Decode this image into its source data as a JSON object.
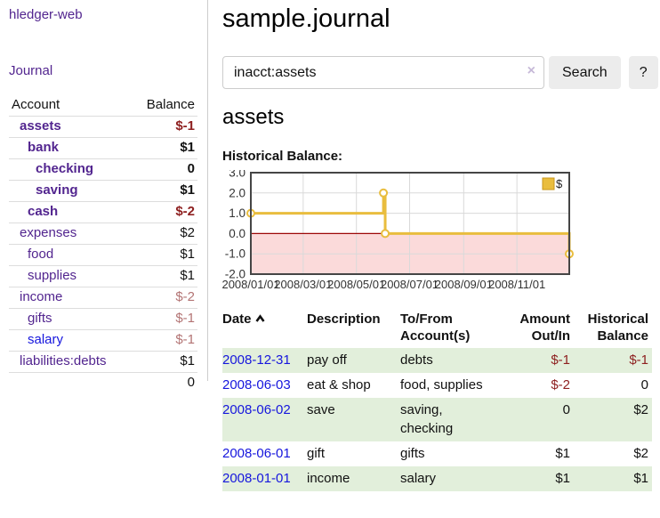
{
  "app": {
    "brand": "hledger-web"
  },
  "nav": {
    "journal": "Journal"
  },
  "sidebar": {
    "header": {
      "account": "Account",
      "balance": "Balance"
    },
    "accounts": [
      {
        "name": "assets",
        "balance": "$-1",
        "indent": 1,
        "bold": true,
        "balance_class": "neg-strong",
        "link": "purple"
      },
      {
        "name": "bank",
        "balance": "$1",
        "indent": 2,
        "bold": true,
        "balance_class": "pos",
        "link": "purple"
      },
      {
        "name": "checking",
        "balance": "0",
        "indent": 3,
        "bold": true,
        "balance_class": "pos",
        "link": "purple"
      },
      {
        "name": "saving",
        "balance": "$1",
        "indent": 3,
        "bold": true,
        "balance_class": "pos",
        "link": "purple"
      },
      {
        "name": "cash",
        "balance": "$-2",
        "indent": 2,
        "bold": true,
        "balance_class": "neg-strong",
        "link": "purple"
      },
      {
        "name": "expenses",
        "balance": "$2",
        "indent": 1,
        "bold": false,
        "balance_class": "pos",
        "link": "purple"
      },
      {
        "name": "food",
        "balance": "$1",
        "indent": 2,
        "bold": false,
        "balance_class": "pos",
        "link": "purple"
      },
      {
        "name": "supplies",
        "balance": "$1",
        "indent": 2,
        "bold": false,
        "balance_class": "pos",
        "link": "purple"
      },
      {
        "name": "income",
        "balance": "$-2",
        "indent": 1,
        "bold": false,
        "balance_class": "neg-soft",
        "link": "purple"
      },
      {
        "name": "gifts",
        "balance": "$-1",
        "indent": 2,
        "bold": false,
        "balance_class": "neg-soft",
        "link": "purple"
      },
      {
        "name": "salary",
        "balance": "$-1",
        "indent": 2,
        "bold": false,
        "balance_class": "neg-soft",
        "link": "blue"
      },
      {
        "name": "liabilities:debts",
        "balance": "$1",
        "indent": 1,
        "bold": false,
        "balance_class": "pos",
        "link": "purple"
      }
    ],
    "total": "0"
  },
  "main": {
    "title": "sample.journal"
  },
  "search": {
    "value": "inacct:assets",
    "clear_icon": "×",
    "button": "Search",
    "help": "?"
  },
  "account_view": {
    "heading": "assets",
    "chart_title": "Historical Balance:"
  },
  "chart_data": {
    "type": "line",
    "title": "Historical Balance:",
    "step": true,
    "series": [
      {
        "name": "$",
        "color": "#e9bd3e",
        "points": [
          [
            "2008-01-01",
            1.0
          ],
          [
            "2008-06-01",
            2.0
          ],
          [
            "2008-06-03",
            0.0
          ],
          [
            "2008-12-31",
            -1.0
          ]
        ]
      }
    ],
    "ylim": [
      -2.0,
      3.0
    ],
    "yticks": [
      "3.0",
      "2.0",
      "1.0",
      "0.0",
      "-1.0",
      "-2.0"
    ],
    "xticks": [
      "2008/01/01",
      "2008/03/01",
      "2008/05/01",
      "2008/07/01",
      "2008/09/01",
      "2008/11/01"
    ],
    "xrange": [
      "2008-01-01",
      "2008-12-31"
    ],
    "legend": {
      "label": "$",
      "position": "top-right"
    },
    "grid": true,
    "colors": {
      "frame": "#454545",
      "gridline": "#d9d9d9",
      "zero_line": "#9c0606",
      "negative_fill": "#fbdada",
      "point_fill": "#ffffff",
      "legend_box_border": "#c9971c",
      "tick_text": "#333333"
    }
  },
  "register": {
    "columns": {
      "date": "Date",
      "description": "Description",
      "to_from": "To/From\nAccount(s)",
      "amount": "Amount\nOut/In",
      "balance": "Historical\nBalance"
    },
    "sort_icon": "chevron-up",
    "rows": [
      {
        "date": "2008-12-31",
        "description": "pay off",
        "accounts": [
          "debts"
        ],
        "amount": "$-1",
        "amount_class": "neg",
        "balance": "$-1",
        "balance_class": "neg"
      },
      {
        "date": "2008-06-03",
        "description": "eat & shop",
        "accounts": [
          "food, supplies"
        ],
        "amount": "$-2",
        "amount_class": "neg",
        "balance": "0",
        "balance_class": "pos"
      },
      {
        "date": "2008-06-02",
        "description": "save",
        "accounts": [
          "saving,",
          "checking"
        ],
        "amount": "0",
        "amount_class": "pos",
        "balance": "$2",
        "balance_class": "pos"
      },
      {
        "date": "2008-06-01",
        "description": "gift",
        "accounts": [
          "gifts"
        ],
        "amount": "$1",
        "amount_class": "pos",
        "balance": "$2",
        "balance_class": "pos"
      },
      {
        "date": "2008-01-01",
        "description": "income",
        "accounts": [
          "salary"
        ],
        "amount": "$1",
        "amount_class": "pos",
        "balance": "$1",
        "balance_class": "pos"
      }
    ]
  },
  "colors": {
    "link_purple": "#52258f",
    "link_blue": "#1616dd",
    "negative_strong": "#8e2020",
    "negative_soft": "#b37474",
    "row_green": "#e2efdb",
    "chart_gold": "#e9bd3e"
  }
}
